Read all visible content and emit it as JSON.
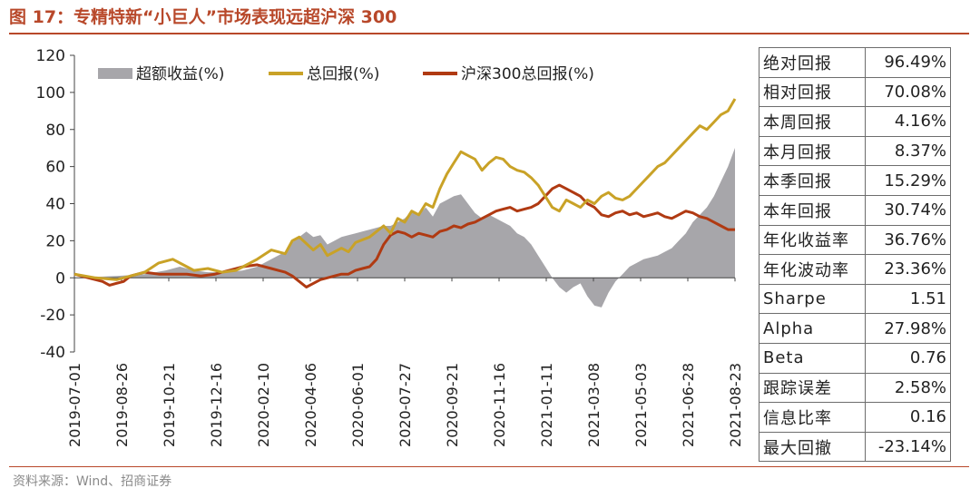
{
  "title": "图 17：专精特新“小巨人”市场表现远超沪深 300",
  "source": "资料来源：Wind、招商证券",
  "chart_data": {
    "type": "line",
    "ylim": [
      -40,
      120
    ],
    "yticks": [
      -40,
      -20,
      0,
      20,
      40,
      60,
      80,
      100,
      120
    ],
    "xticks": [
      "2019-07-01",
      "2019-08-26",
      "2019-10-21",
      "2019-12-16",
      "2020-02-10",
      "2020-04-06",
      "2020-06-01",
      "2020-07-27",
      "2020-09-21",
      "2020-11-16",
      "2021-01-11",
      "2021-03-08",
      "2021-05-03",
      "2021-06-28",
      "2021-08-23"
    ],
    "legend": [
      "超额收益(%)",
      "总回报(%)",
      "沪深300总回报(%)"
    ],
    "series": [
      {
        "name": "总回报(%)",
        "type": "line",
        "color": "#c9a227",
        "points": [
          [
            0,
            2
          ],
          [
            3,
            0
          ],
          [
            6,
            -1
          ],
          [
            9,
            2
          ],
          [
            10,
            3
          ],
          [
            12,
            8
          ],
          [
            14,
            10
          ],
          [
            16,
            6
          ],
          [
            17,
            4
          ],
          [
            19,
            5
          ],
          [
            21,
            3
          ],
          [
            23,
            4
          ],
          [
            24,
            6
          ],
          [
            26,
            10
          ],
          [
            28,
            15
          ],
          [
            30,
            13
          ],
          [
            31,
            20
          ],
          [
            32,
            22
          ],
          [
            34,
            15
          ],
          [
            35,
            18
          ],
          [
            36,
            12
          ],
          [
            38,
            16
          ],
          [
            39,
            14
          ],
          [
            40,
            19
          ],
          [
            42,
            22
          ],
          [
            44,
            28
          ],
          [
            45,
            24
          ],
          [
            46,
            32
          ],
          [
            47,
            30
          ],
          [
            48,
            36
          ],
          [
            49,
            34
          ],
          [
            50,
            40
          ],
          [
            51,
            38
          ],
          [
            52,
            48
          ],
          [
            53,
            56
          ],
          [
            54,
            62
          ],
          [
            55,
            68
          ],
          [
            56,
            66
          ],
          [
            57,
            64
          ],
          [
            58,
            58
          ],
          [
            59,
            62
          ],
          [
            60,
            65
          ],
          [
            61,
            64
          ],
          [
            62,
            60
          ],
          [
            63,
            58
          ],
          [
            64,
            57
          ],
          [
            65,
            54
          ],
          [
            66,
            50
          ],
          [
            67,
            44
          ],
          [
            68,
            38
          ],
          [
            69,
            36
          ],
          [
            70,
            42
          ],
          [
            71,
            40
          ],
          [
            72,
            38
          ],
          [
            73,
            42
          ],
          [
            74,
            40
          ],
          [
            75,
            44
          ],
          [
            76,
            46
          ],
          [
            77,
            43
          ],
          [
            78,
            42
          ],
          [
            79,
            44
          ],
          [
            80,
            48
          ],
          [
            81,
            52
          ],
          [
            82,
            56
          ],
          [
            83,
            60
          ],
          [
            84,
            62
          ],
          [
            85,
            66
          ],
          [
            86,
            70
          ],
          [
            87,
            74
          ],
          [
            88,
            78
          ],
          [
            89,
            82
          ],
          [
            90,
            80
          ],
          [
            91,
            84
          ],
          [
            92,
            88
          ],
          [
            93,
            90
          ],
          [
            94,
            96.49
          ]
        ]
      },
      {
        "name": "沪深300总回报(%)",
        "type": "line",
        "color": "#b03a12",
        "points": [
          [
            0,
            2
          ],
          [
            2,
            0
          ],
          [
            4,
            -2
          ],
          [
            5,
            -4
          ],
          [
            7,
            -2
          ],
          [
            8,
            1
          ],
          [
            10,
            3
          ],
          [
            12,
            2
          ],
          [
            14,
            2
          ],
          [
            16,
            2
          ],
          [
            18,
            1
          ],
          [
            20,
            2
          ],
          [
            22,
            4
          ],
          [
            24,
            6
          ],
          [
            26,
            7
          ],
          [
            28,
            5
          ],
          [
            29,
            4
          ],
          [
            30,
            3
          ],
          [
            31,
            1
          ],
          [
            32,
            -2
          ],
          [
            33,
            -5
          ],
          [
            34,
            -3
          ],
          [
            35,
            -1
          ],
          [
            36,
            0
          ],
          [
            37,
            1
          ],
          [
            38,
            2
          ],
          [
            39,
            2
          ],
          [
            40,
            4
          ],
          [
            41,
            5
          ],
          [
            42,
            6
          ],
          [
            43,
            10
          ],
          [
            44,
            18
          ],
          [
            45,
            23
          ],
          [
            46,
            25
          ],
          [
            47,
            24
          ],
          [
            48,
            22
          ],
          [
            49,
            24
          ],
          [
            50,
            23
          ],
          [
            51,
            22
          ],
          [
            52,
            25
          ],
          [
            53,
            26
          ],
          [
            54,
            28
          ],
          [
            55,
            27
          ],
          [
            56,
            29
          ],
          [
            57,
            30
          ],
          [
            58,
            32
          ],
          [
            59,
            34
          ],
          [
            60,
            36
          ],
          [
            61,
            37
          ],
          [
            62,
            38
          ],
          [
            63,
            36
          ],
          [
            64,
            37
          ],
          [
            65,
            38
          ],
          [
            66,
            40
          ],
          [
            67,
            44
          ],
          [
            68,
            48
          ],
          [
            69,
            50
          ],
          [
            70,
            48
          ],
          [
            71,
            46
          ],
          [
            72,
            44
          ],
          [
            73,
            40
          ],
          [
            74,
            38
          ],
          [
            75,
            34
          ],
          [
            76,
            33
          ],
          [
            77,
            35
          ],
          [
            78,
            36
          ],
          [
            79,
            34
          ],
          [
            80,
            35
          ],
          [
            81,
            33
          ],
          [
            82,
            34
          ],
          [
            83,
            35
          ],
          [
            84,
            33
          ],
          [
            85,
            32
          ],
          [
            86,
            34
          ],
          [
            87,
            36
          ],
          [
            88,
            35
          ],
          [
            89,
            33
          ],
          [
            90,
            32
          ],
          [
            91,
            30
          ],
          [
            92,
            28
          ],
          [
            93,
            26
          ],
          [
            94,
            26
          ]
        ]
      },
      {
        "name": "超额收益(%)",
        "type": "area",
        "color": "#a7a6aa",
        "points": [
          [
            0,
            0
          ],
          [
            6,
            1
          ],
          [
            10,
            2
          ],
          [
            13,
            4
          ],
          [
            15,
            6
          ],
          [
            17,
            4
          ],
          [
            19,
            3
          ],
          [
            22,
            3
          ],
          [
            24,
            4
          ],
          [
            26,
            6
          ],
          [
            28,
            10
          ],
          [
            30,
            14
          ],
          [
            31,
            19
          ],
          [
            32,
            22
          ],
          [
            33,
            25
          ],
          [
            34,
            22
          ],
          [
            35,
            23
          ],
          [
            36,
            18
          ],
          [
            37,
            20
          ],
          [
            38,
            22
          ],
          [
            40,
            24
          ],
          [
            42,
            26
          ],
          [
            44,
            28
          ],
          [
            45,
            28
          ],
          [
            46,
            30
          ],
          [
            47,
            32
          ],
          [
            48,
            36
          ],
          [
            49,
            34
          ],
          [
            50,
            38
          ],
          [
            51,
            33
          ],
          [
            52,
            40
          ],
          [
            53,
            42
          ],
          [
            54,
            44
          ],
          [
            55,
            45
          ],
          [
            56,
            40
          ],
          [
            57,
            35
          ],
          [
            58,
            32
          ],
          [
            59,
            34
          ],
          [
            60,
            32
          ],
          [
            61,
            30
          ],
          [
            62,
            28
          ],
          [
            63,
            24
          ],
          [
            64,
            22
          ],
          [
            65,
            18
          ],
          [
            66,
            12
          ],
          [
            67,
            6
          ],
          [
            68,
            0
          ],
          [
            69,
            -5
          ],
          [
            70,
            -8
          ],
          [
            71,
            -5
          ],
          [
            72,
            -3
          ],
          [
            73,
            -10
          ],
          [
            74,
            -15
          ],
          [
            75,
            -16
          ],
          [
            76,
            -8
          ],
          [
            77,
            -2
          ],
          [
            78,
            2
          ],
          [
            79,
            6
          ],
          [
            80,
            8
          ],
          [
            81,
            10
          ],
          [
            82,
            11
          ],
          [
            83,
            12
          ],
          [
            84,
            14
          ],
          [
            85,
            16
          ],
          [
            86,
            20
          ],
          [
            87,
            24
          ],
          [
            88,
            30
          ],
          [
            89,
            34
          ],
          [
            90,
            38
          ],
          [
            91,
            44
          ],
          [
            92,
            52
          ],
          [
            93,
            60
          ],
          [
            94,
            70.08
          ]
        ]
      }
    ]
  },
  "stats": [
    {
      "label": "绝对回报",
      "value": "96.49%"
    },
    {
      "label": "相对回报",
      "value": "70.08%"
    },
    {
      "label": "本周回报",
      "value": "4.16%"
    },
    {
      "label": "本月回报",
      "value": "8.37%"
    },
    {
      "label": "本季回报",
      "value": "15.29%"
    },
    {
      "label": "本年回报",
      "value": "30.74%"
    },
    {
      "label": "年化收益率",
      "value": "36.76%"
    },
    {
      "label": "年化波动率",
      "value": "23.36%"
    },
    {
      "label": "Sharpe",
      "value": "1.51"
    },
    {
      "label": "Alpha",
      "value": "27.98%"
    },
    {
      "label": "Beta",
      "value": "0.76"
    },
    {
      "label": "跟踪误差",
      "value": "2.58%"
    },
    {
      "label": "信息比率",
      "value": "0.16"
    },
    {
      "label": "最大回撤",
      "value": "-23.14%"
    }
  ]
}
